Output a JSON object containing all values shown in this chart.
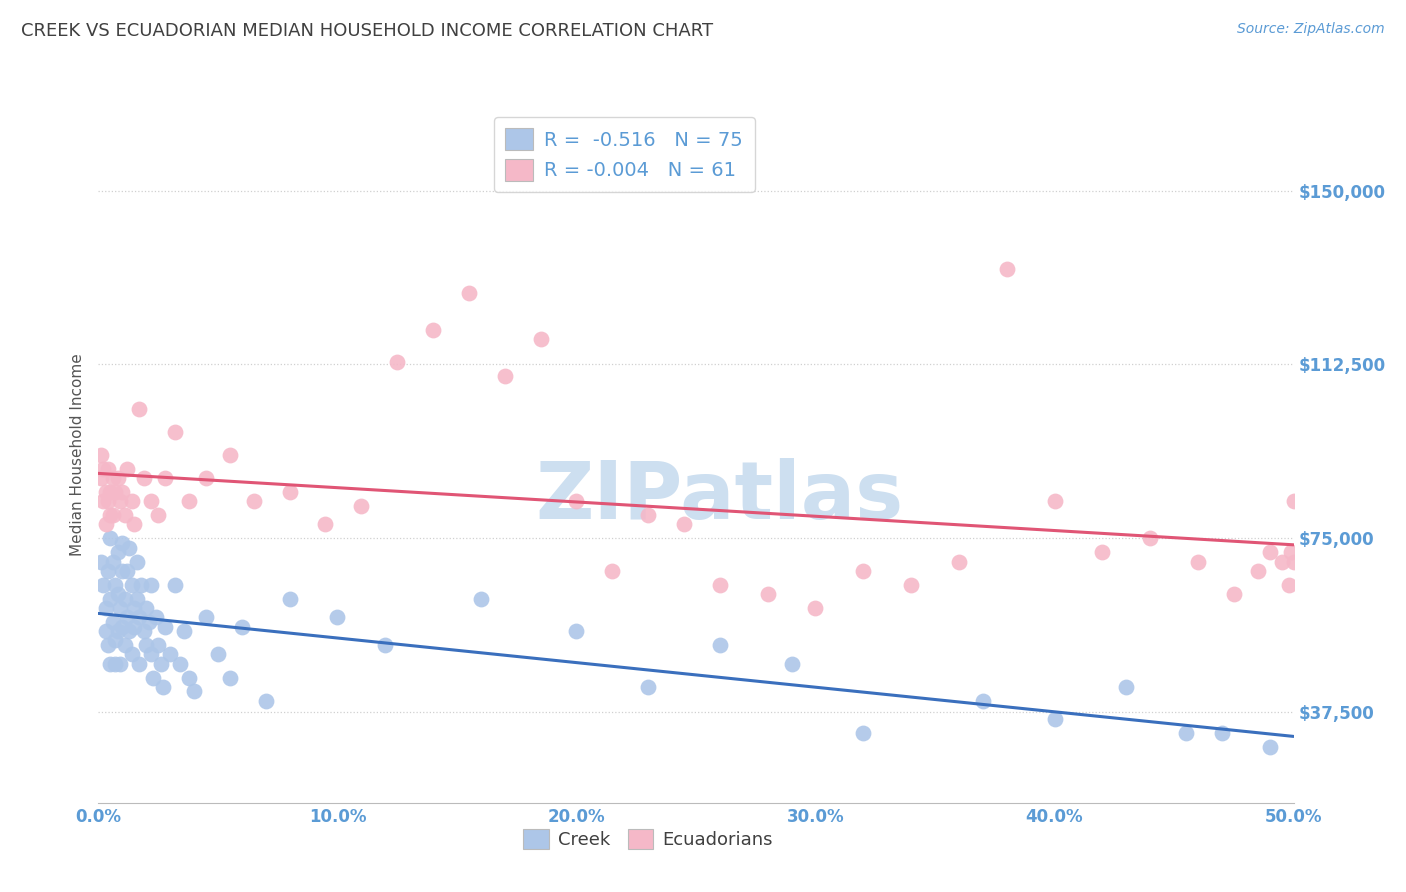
{
  "title": "CREEK VS ECUADORIAN MEDIAN HOUSEHOLD INCOME CORRELATION CHART",
  "source": "Source: ZipAtlas.com",
  "ylabel": "Median Household Income",
  "xlim": [
    0.0,
    0.5
  ],
  "ylim": [
    18000,
    168000
  ],
  "yticks": [
    37500,
    75000,
    112500,
    150000
  ],
  "ytick_labels": [
    "$37,500",
    "$75,000",
    "$112,500",
    "$150,000"
  ],
  "xticks": [
    0.0,
    0.1,
    0.2,
    0.3,
    0.4,
    0.5
  ],
  "xtick_labels": [
    "0.0%",
    "10.0%",
    "20.0%",
    "30.0%",
    "40.0%",
    "50.0%"
  ],
  "creek_R": -0.516,
  "creek_N": 75,
  "ecuadorian_R": -0.004,
  "ecuadorian_N": 61,
  "creek_color": "#adc6e8",
  "ecuadorian_color": "#f5b8c8",
  "creek_line_color": "#3a6fbd",
  "ecuadorian_line_color": "#e05575",
  "background_color": "#ffffff",
  "grid_color": "#d0d0d0",
  "watermark": "ZIPatlas",
  "watermark_color": "#cddff0",
  "title_color": "#404040",
  "axis_tick_color": "#5b9bd5",
  "creek_x": [
    0.001,
    0.002,
    0.003,
    0.003,
    0.004,
    0.004,
    0.005,
    0.005,
    0.005,
    0.006,
    0.006,
    0.007,
    0.007,
    0.007,
    0.008,
    0.008,
    0.008,
    0.009,
    0.009,
    0.01,
    0.01,
    0.01,
    0.011,
    0.011,
    0.012,
    0.012,
    0.013,
    0.013,
    0.014,
    0.014,
    0.015,
    0.015,
    0.016,
    0.016,
    0.017,
    0.017,
    0.018,
    0.019,
    0.02,
    0.02,
    0.021,
    0.022,
    0.022,
    0.023,
    0.024,
    0.025,
    0.026,
    0.027,
    0.028,
    0.03,
    0.032,
    0.034,
    0.036,
    0.038,
    0.04,
    0.045,
    0.05,
    0.055,
    0.06,
    0.07,
    0.08,
    0.1,
    0.12,
    0.16,
    0.2,
    0.23,
    0.26,
    0.29,
    0.32,
    0.37,
    0.4,
    0.43,
    0.455,
    0.47,
    0.49
  ],
  "creek_y": [
    70000,
    65000,
    60000,
    55000,
    52000,
    68000,
    48000,
    62000,
    75000,
    57000,
    70000,
    53000,
    65000,
    48000,
    63000,
    55000,
    72000,
    60000,
    48000,
    68000,
    56000,
    74000,
    62000,
    52000,
    68000,
    58000,
    73000,
    55000,
    65000,
    50000,
    60000,
    56000,
    70000,
    62000,
    58000,
    48000,
    65000,
    55000,
    60000,
    52000,
    57000,
    65000,
    50000,
    45000,
    58000,
    52000,
    48000,
    43000,
    56000,
    50000,
    65000,
    48000,
    55000,
    45000,
    42000,
    58000,
    50000,
    45000,
    56000,
    40000,
    62000,
    58000,
    52000,
    62000,
    55000,
    43000,
    52000,
    48000,
    33000,
    40000,
    36000,
    43000,
    33000,
    33000,
    30000
  ],
  "ecuadorian_x": [
    0.001,
    0.001,
    0.002,
    0.002,
    0.003,
    0.003,
    0.004,
    0.004,
    0.005,
    0.005,
    0.006,
    0.006,
    0.007,
    0.008,
    0.009,
    0.01,
    0.011,
    0.012,
    0.014,
    0.015,
    0.017,
    0.019,
    0.022,
    0.025,
    0.028,
    0.032,
    0.038,
    0.045,
    0.055,
    0.065,
    0.08,
    0.095,
    0.11,
    0.125,
    0.14,
    0.155,
    0.17,
    0.185,
    0.2,
    0.215,
    0.23,
    0.245,
    0.26,
    0.28,
    0.3,
    0.32,
    0.34,
    0.36,
    0.38,
    0.4,
    0.42,
    0.44,
    0.46,
    0.475,
    0.485,
    0.49,
    0.495,
    0.498,
    0.499,
    0.5,
    0.5
  ],
  "ecuadorian_y": [
    88000,
    93000,
    83000,
    90000,
    85000,
    78000,
    83000,
    90000,
    80000,
    85000,
    88000,
    80000,
    85000,
    88000,
    83000,
    85000,
    80000,
    90000,
    83000,
    78000,
    103000,
    88000,
    83000,
    80000,
    88000,
    98000,
    83000,
    88000,
    93000,
    83000,
    85000,
    78000,
    82000,
    113000,
    120000,
    128000,
    110000,
    118000,
    83000,
    68000,
    80000,
    78000,
    65000,
    63000,
    60000,
    68000,
    65000,
    70000,
    133000,
    83000,
    72000,
    75000,
    70000,
    63000,
    68000,
    72000,
    70000,
    65000,
    72000,
    70000,
    83000
  ]
}
